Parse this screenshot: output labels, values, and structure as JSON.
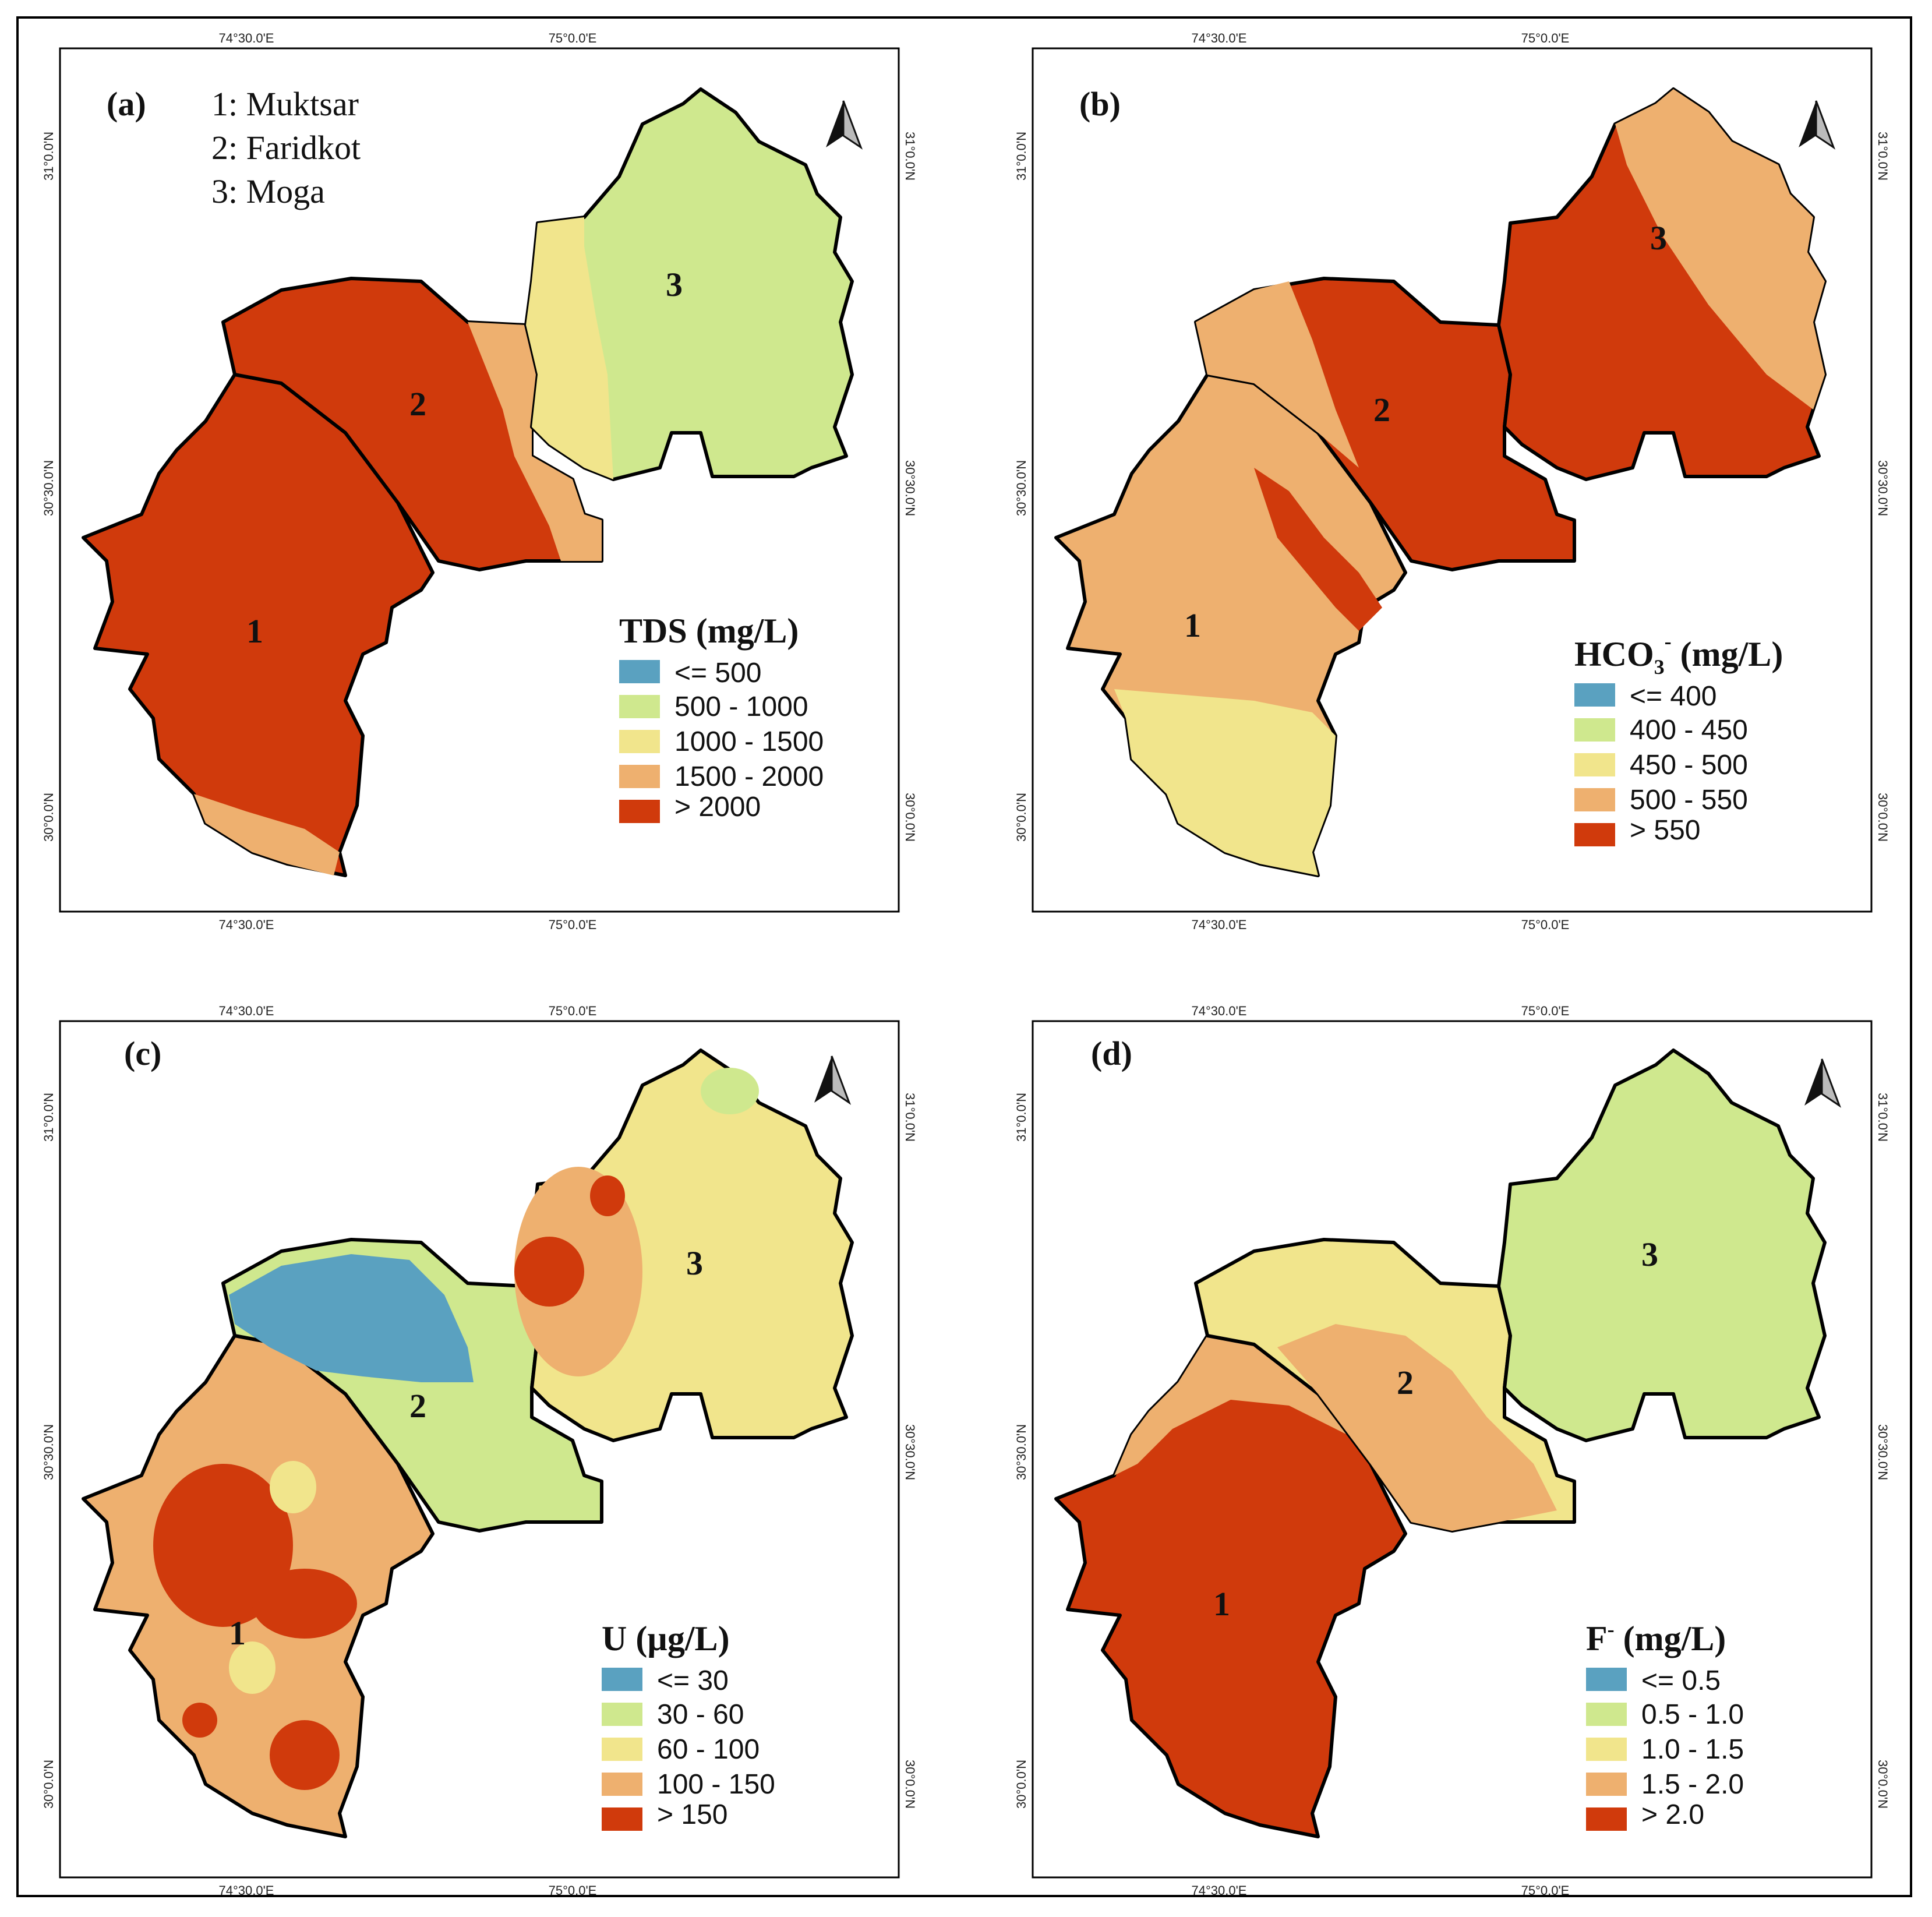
{
  "colors": {
    "blue": "#5aa1c0",
    "green": "#cfe88e",
    "yellow": "#f1e58c",
    "orange": "#eeb06f",
    "red": "#d03a0c"
  },
  "north_arrow_icon": "north-arrow-icon",
  "coords": {
    "lon_a": "74°30.0'E",
    "lon_b": "75°0.0'E",
    "lat_a": "31°0.0'N",
    "lat_b": "30°30.0'N",
    "lat_c": "30°0.0'N"
  },
  "districts": [
    {
      "num": "1",
      "name": "1: Muktsar"
    },
    {
      "num": "2",
      "name": "2: Faridkot"
    },
    {
      "num": "3",
      "name": "3: Moga"
    }
  ],
  "panels": [
    {
      "label": "(a)",
      "legend_title": "TDS (mg/L)",
      "legend": [
        "<= 500",
        "500 - 1000",
        "1000 - 1500",
        "1500 - 2000",
        "> 2000"
      ],
      "fill": {
        "d1": "red",
        "d2": "red",
        "d3": "green"
      }
    },
    {
      "label": "(b)",
      "legend_title": "HCO3- (mg/L)",
      "legend_title_base": "HCO",
      "legend_title_sub": "3",
      "legend_title_sup": "-",
      "legend_title_unit": " (mg/L)",
      "legend": [
        "<= 400",
        "400 - 450",
        "450 - 500",
        "500 - 550",
        "> 550"
      ],
      "fill": {
        "d1": "orange",
        "d2": "red",
        "d3": "orange"
      }
    },
    {
      "label": "(c)",
      "legend_title": "U (µg/L)",
      "legend": [
        "<= 30",
        "30 - 60",
        "60 - 100",
        "100 - 150",
        "> 150"
      ],
      "fill": {
        "d1": "orange",
        "d2": "green",
        "d3": "yellow"
      }
    },
    {
      "label": "(d)",
      "legend_title": "F- (mg/L)",
      "legend_title_base": "F",
      "legend_title_sup": "-",
      "legend_title_unit": " (mg/L)",
      "legend": [
        "<= 0.5",
        "0.5 - 1.0",
        "1.0 - 1.5",
        "1.5 - 2.0",
        "> 2.0"
      ],
      "fill": {
        "d1": "red",
        "d2": "yellow",
        "d3": "green"
      }
    }
  ]
}
